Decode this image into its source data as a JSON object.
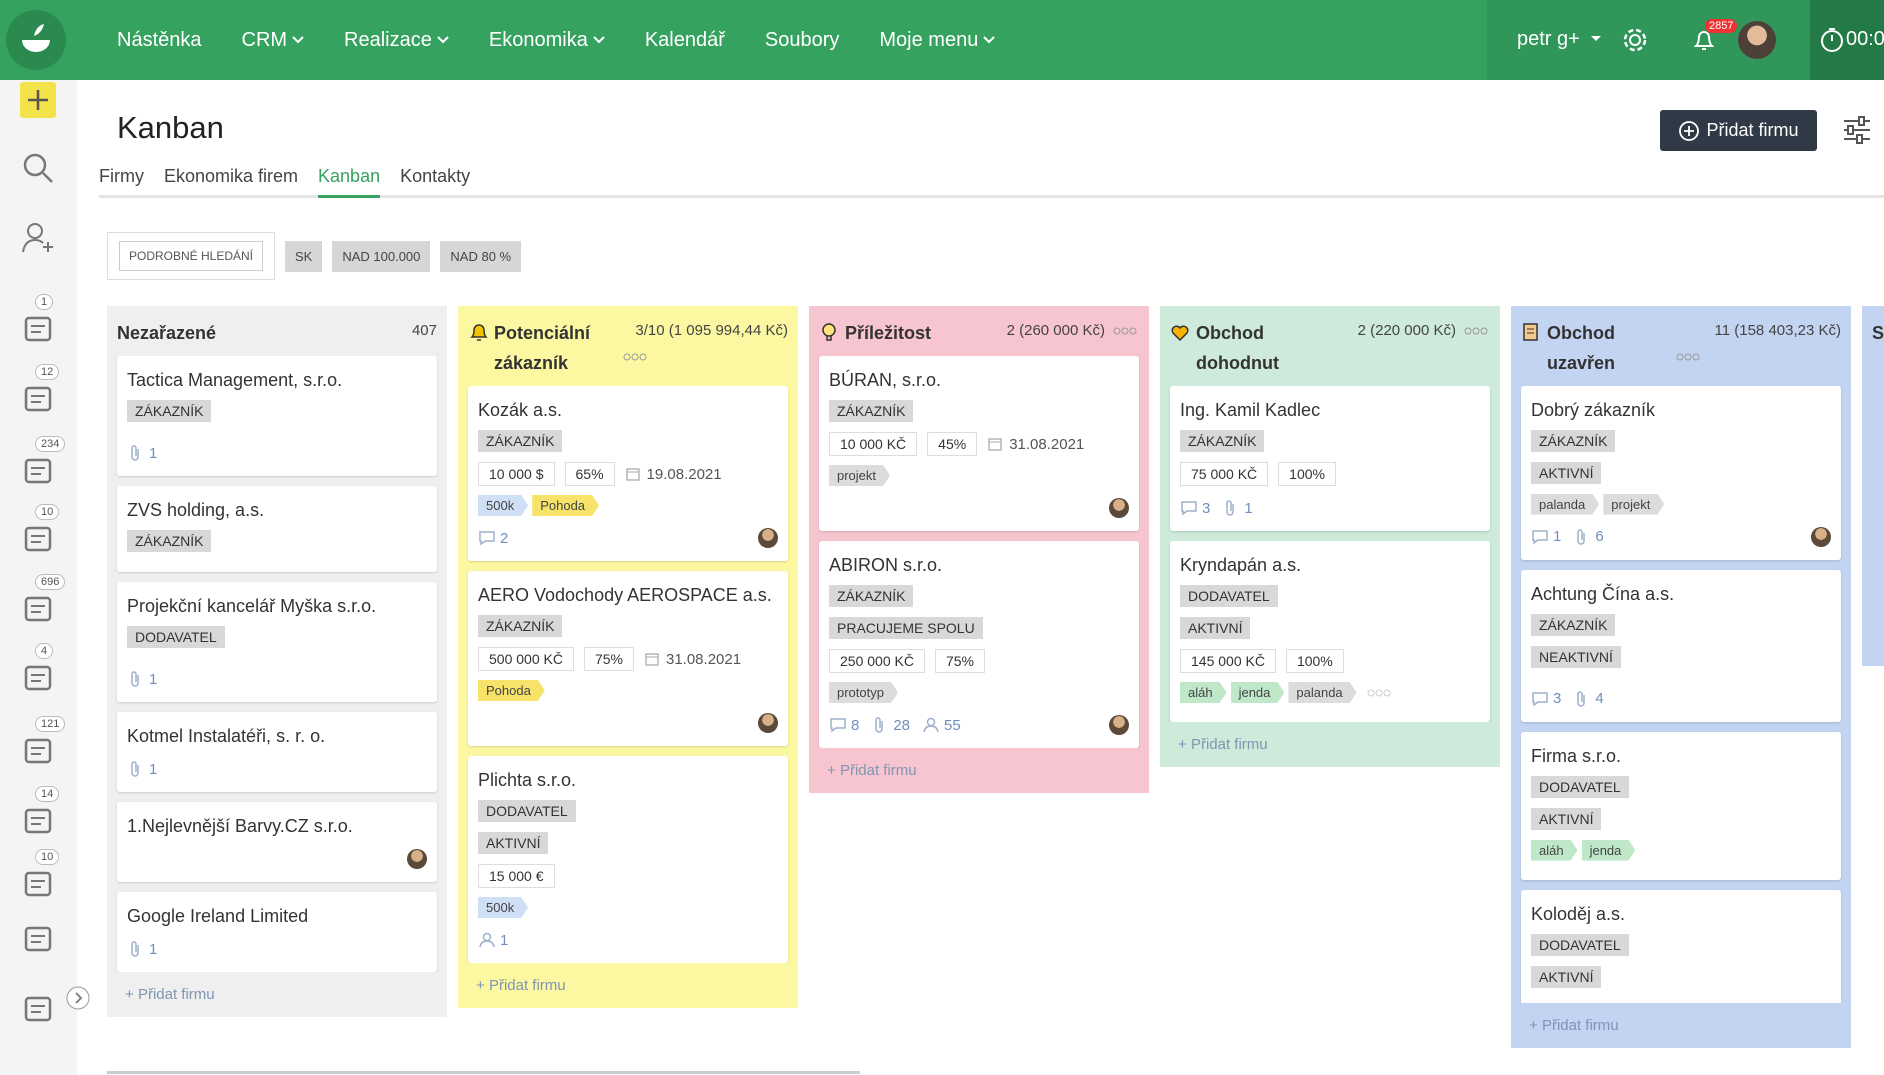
{
  "nav": {
    "items": [
      {
        "label": "Nástěnka"
      },
      {
        "label": "CRM",
        "dropdown": true
      },
      {
        "label": "Realizace",
        "dropdown": true
      },
      {
        "label": "Ekonomika",
        "dropdown": true
      },
      {
        "label": "Kalendář"
      },
      {
        "label": "Soubory"
      },
      {
        "label": "Moje menu",
        "dropdown": true
      }
    ],
    "user": "petr g+",
    "notifications": 2857,
    "timer": "00:0"
  },
  "sidebar": {
    "badges": [
      1,
      12,
      234,
      10,
      696,
      4,
      121,
      14,
      10
    ]
  },
  "header": {
    "title": "Kanban",
    "add_button": "Přidat firmu"
  },
  "tabs": {
    "items": [
      "Firmy",
      "Ekonomika firem",
      "Kanban",
      "Kontakty"
    ],
    "active": 2
  },
  "filters": {
    "search": "PODROBNÉ HLEDÁNÍ",
    "chips": [
      "SK",
      "NAD 100.000",
      "NAD 80 %"
    ]
  },
  "columns": [
    {
      "title": "Nezařazené",
      "count": 407,
      "color": "#efefef",
      "add_label": "Přidat firmu",
      "cards": [
        {
          "name": "Tactica Management, s.r.o.",
          "tags": [
            "ZÁKAZNÍK"
          ],
          "stats": [
            {
              "icon": "clip",
              "value": 1
            }
          ]
        },
        {
          "name": "ZVS holding, a.s.",
          "tags": [
            "ZÁKAZNÍK"
          ]
        },
        {
          "name": "Projekční kancelář Myška s.r.o.",
          "tags": [
            "DODAVATEL"
          ],
          "stats": [
            {
              "icon": "clip",
              "value": 1
            }
          ]
        },
        {
          "name": "Kotmel Instalatéři, s. r. o.",
          "stats": [
            {
              "icon": "clip",
              "value": 1
            }
          ]
        },
        {
          "name": "1.Nejlevnější Barvy.CZ s.r.o.",
          "avatar": true
        },
        {
          "name": "Google Ireland Limited",
          "stats": [
            {
              "icon": "clip",
              "value": 1
            }
          ]
        }
      ]
    },
    {
      "title": "Potenciální zákazník",
      "count": "3/10 (1 095 994,44 Kč)",
      "icon": "bell",
      "more": true,
      "color": "#fcf8a2",
      "add_label": "Přidat firmu",
      "cards": [
        {
          "name": "Kozák a.s.",
          "tags": [
            "ZÁKAZNÍK"
          ],
          "amounts": [
            "10 000 $",
            "65%"
          ],
          "date": "19.08.2021",
          "labels": [
            {
              "text": "500k",
              "color": "#cfe0f6"
            },
            {
              "text": "Pohoda",
              "color": "#f7e36a"
            }
          ],
          "stats": [
            {
              "icon": "comment",
              "value": 2
            }
          ],
          "avatar": true
        },
        {
          "name": "AERO Vodochody AEROSPACE a.s.",
          "tags": [
            "ZÁKAZNÍK"
          ],
          "amounts": [
            "500 000 KČ",
            "75%"
          ],
          "date": "31.08.2021",
          "labels": [
            {
              "text": "Pohoda",
              "color": "#f7e36a"
            }
          ],
          "avatar": true
        },
        {
          "name": "Plichta s.r.o.",
          "tags": [
            "DODAVATEL",
            "AKTIVNÍ"
          ],
          "amounts": [
            "15 000 €"
          ],
          "labels": [
            {
              "text": "500k",
              "color": "#cfe0f6"
            }
          ],
          "stats": [
            {
              "icon": "person",
              "value": 1
            }
          ]
        }
      ]
    },
    {
      "title": "Příležitost",
      "count": "2 (260 000 Kč)",
      "icon": "bulb",
      "more": true,
      "color": "#f6c5cf",
      "add_label": "Přidat firmu",
      "cards": [
        {
          "name": "BÚRAN, s.r.o.",
          "tags": [
            "ZÁKAZNÍK"
          ],
          "amounts": [
            "10 000 KČ",
            "45%"
          ],
          "date": "31.08.2021",
          "labels": [
            {
              "text": "projekt",
              "color": "#dcdcdc"
            }
          ],
          "avatar": true
        },
        {
          "name": "ABIRON s.r.o.",
          "tags": [
            "ZÁKAZNÍK",
            "PRACUJEME SPOLU"
          ],
          "amounts": [
            "250 000 KČ",
            "75%"
          ],
          "labels": [
            {
              "text": "prototyp",
              "color": "#dcdcdc"
            }
          ],
          "stats": [
            {
              "icon": "comment",
              "value": 8
            },
            {
              "icon": "clip",
              "value": 28
            },
            {
              "icon": "person",
              "value": 55
            }
          ],
          "avatar": true
        }
      ]
    },
    {
      "title": "Obchod dohodnut",
      "count": "2 (220 000 Kč)",
      "icon": "heart",
      "more": true,
      "color": "#cdeadb",
      "add_label": "Přidat firmu",
      "cards": [
        {
          "name": "Ing. Kamil Kadlec",
          "tags": [
            "ZÁKAZNÍK"
          ],
          "amounts": [
            "75 000 KČ",
            "100%"
          ],
          "stats": [
            {
              "icon": "comment",
              "value": 3
            },
            {
              "icon": "clip",
              "value": 1
            }
          ]
        },
        {
          "name": "Kryndapán a.s.",
          "tags": [
            "DODAVATEL",
            "AKTIVNÍ"
          ],
          "amounts": [
            "145 000 KČ",
            "100%"
          ],
          "labels": [
            {
              "text": "aláh",
              "color": "#bfe8c8"
            },
            {
              "text": "jenda",
              "color": "#bfe8c8"
            },
            {
              "text": "palanda",
              "color": "#dcdcdc"
            }
          ],
          "more_labels": true
        }
      ]
    },
    {
      "title": "Obchod uzavřen",
      "count": "11 (158 403,23 Kč)",
      "icon": "scroll",
      "more": true,
      "color": "#c3d3f2",
      "add_label": "Přidat firmu",
      "cards": [
        {
          "name": "Dobrý zákazník",
          "tags": [
            "ZÁKAZNÍK",
            "AKTIVNÍ"
          ],
          "labels": [
            {
              "text": "palanda",
              "color": "#dcdcdc"
            },
            {
              "text": "projekt",
              "color": "#dcdcdc"
            }
          ],
          "stats": [
            {
              "icon": "comment",
              "value": 1
            },
            {
              "icon": "clip",
              "value": 6
            }
          ],
          "avatar": true
        },
        {
          "name": "Achtung Čína a.s.",
          "tags": [
            "ZÁKAZNÍK",
            "NEAKTIVNÍ"
          ],
          "stats": [
            {
              "icon": "comment",
              "value": 3
            },
            {
              "icon": "clip",
              "value": 4
            }
          ]
        },
        {
          "name": "Firma s.r.o.",
          "tags": [
            "DODAVATEL",
            "AKTIVNÍ"
          ],
          "labels": [
            {
              "text": "aláh",
              "color": "#bfe8c8"
            },
            {
              "text": "jenda",
              "color": "#bfe8c8"
            }
          ]
        },
        {
          "name": "Koloděj a.s.",
          "tags": [
            "DODAVATEL",
            "AKTIVNÍ"
          ]
        }
      ]
    },
    {
      "title": "Sp",
      "color": "#c3d3f2",
      "cards": []
    }
  ]
}
